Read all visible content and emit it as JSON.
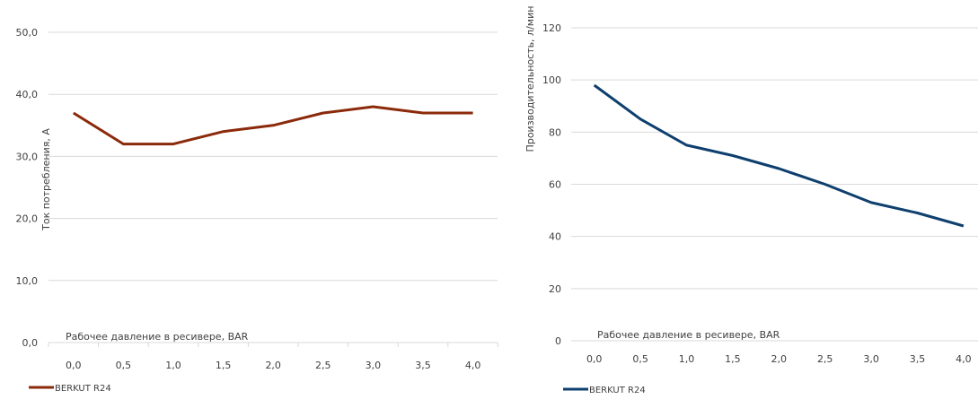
{
  "chart_data": [
    {
      "type": "line",
      "title": "",
      "xlabel": "Рабочее давление в ресивере, BAR",
      "ylabel": "Ток потребления, А",
      "categories": [
        "0,0",
        "0,5",
        "1,0",
        "1,5",
        "2,0",
        "2,5",
        "3,0",
        "3,5",
        "4,0"
      ],
      "yticks": [
        "0,0",
        "10,0",
        "20,0",
        "30,0",
        "40,0",
        "50,0"
      ],
      "ylim": [
        0,
        50
      ],
      "grid": true,
      "legend": "bottom-left",
      "series": [
        {
          "name": "BERKUT R24",
          "color": "#8B2A0A",
          "values": [
            37,
            32,
            32,
            34,
            35,
            37,
            38,
            37,
            37
          ]
        }
      ]
    },
    {
      "type": "line",
      "title": "",
      "xlabel": "Рабочее давление в ресивере, BAR",
      "ylabel": "Производительность, л/мин",
      "categories": [
        "0,0",
        "0,5",
        "1,0",
        "1,5",
        "2,0",
        "2,5",
        "3,0",
        "3,5",
        "4,0"
      ],
      "yticks": [
        "0",
        "20",
        "40",
        "60",
        "80",
        "100",
        "120"
      ],
      "ylim": [
        0,
        120
      ],
      "grid": true,
      "legend": "bottom-left",
      "series": [
        {
          "name": "BERKUT R24",
          "color": "#0E3F6E",
          "values": [
            98,
            85,
            75,
            71,
            66,
            60,
            53,
            49,
            44
          ]
        }
      ]
    }
  ]
}
